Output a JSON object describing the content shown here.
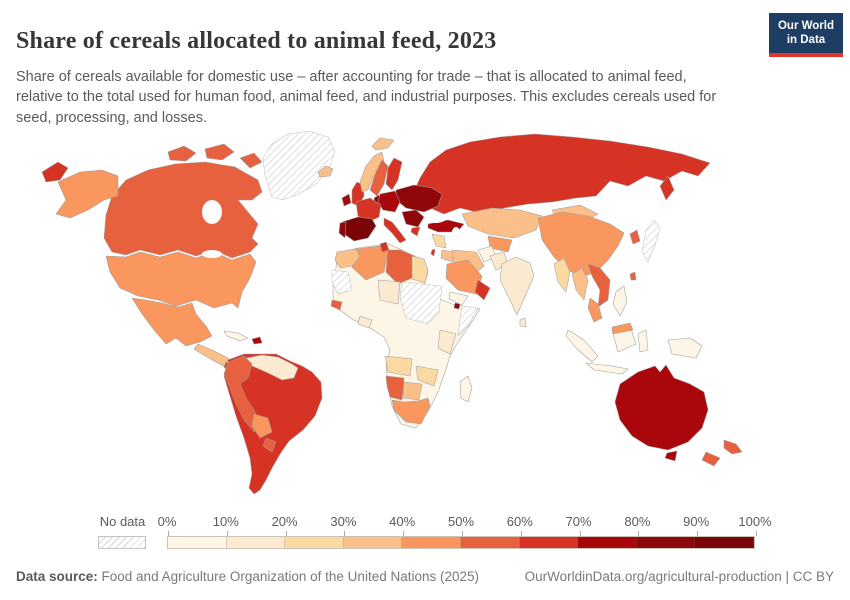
{
  "header": {
    "title": "Share of cereals allocated to animal feed, 2023",
    "subtitle": "Share of cereals available for domestic use – after accounting for trade – that is allocated to animal feed, relative to the total used for human food, animal feed, and industrial purposes. This excludes cereals used for seed, processing, and losses."
  },
  "logo": {
    "line1": "Our World",
    "line2": "in Data",
    "bg_color": "#1d3d63",
    "accent_color": "#e0362c"
  },
  "legend": {
    "no_data_label": "No data",
    "ticks": [
      "0%",
      "10%",
      "20%",
      "30%",
      "40%",
      "50%",
      "60%",
      "70%",
      "80%",
      "90%",
      "100%"
    ],
    "bin_colors": [
      "#fdf6e7",
      "#fcead0",
      "#fbd9a3",
      "#fbc089",
      "#f9975f",
      "#e7613f",
      "#d63324",
      "#a9070b",
      "#8e080b",
      "#7a0406"
    ]
  },
  "footer": {
    "source_label": "Data source:",
    "source_text": " Food and Agriculture Organization of the United Nations (2025)",
    "link_text": "OurWorldinData.org/agricultural-production | CC BY"
  },
  "chart_data": {
    "type": "heatmap",
    "subtype": "world-choropleth",
    "title": "Share of cereals allocated to animal feed, 2023",
    "unit": "% of domestic cereal supply allocated to animal feed",
    "legend_bins": [
      "0-10%",
      "10-20%",
      "20-30%",
      "30-40%",
      "40-50%",
      "50-60%",
      "60-70%",
      "70-80%",
      "80-90%",
      "90-100%"
    ],
    "no_data_style": "hatched",
    "regions": {
      "greenland": {
        "name": "Greenland",
        "value": "No data",
        "color": null
      },
      "canada": {
        "name": "Canada",
        "value": "50-60%",
        "color": "#e7613f"
      },
      "usa": {
        "name": "United States",
        "value": "40-50%",
        "color": "#f9975f"
      },
      "mexico": {
        "name": "Mexico",
        "value": "40-50%",
        "color": "#f9975f"
      },
      "central_america": {
        "name": "Central America",
        "value": "30-40%",
        "color": "#fbc089"
      },
      "costa_rica": {
        "name": "Costa Rica",
        "value": "60-70%",
        "color": "#d63324"
      },
      "cuba": {
        "name": "Cuba",
        "value": "0-10%",
        "color": "#fdf6e7"
      },
      "hispaniola": {
        "name": "Haiti & Dominican Republic",
        "value": "70-80%",
        "color": "#a9070b"
      },
      "venezuela_guyanas": {
        "name": "Venezuela & Guianas",
        "value": "10-20%",
        "color": "#fcead0"
      },
      "andes": {
        "name": "Colombia, Ecuador & Peru",
        "value": "50-60%",
        "color": "#e7613f"
      },
      "bolivia": {
        "name": "Bolivia",
        "value": "40-50%",
        "color": "#f9975f"
      },
      "paraguay": {
        "name": "Paraguay",
        "value": "50-60%",
        "color": "#e7613f"
      },
      "southern_cone": {
        "name": "Brazil, Argentina & Chile",
        "value": "60-70%",
        "color": "#d63324"
      },
      "iceland": {
        "name": "Iceland",
        "value": "30-40%",
        "color": "#fbc089"
      },
      "svalbard": {
        "name": "Svalbard",
        "value": "30-40%",
        "color": "#fbc089"
      },
      "uk": {
        "name": "United Kingdom",
        "value": "60-70%",
        "color": "#d63324"
      },
      "ireland": {
        "name": "Ireland",
        "value": "70-80%",
        "color": "#a9070b"
      },
      "france": {
        "name": "France",
        "value": "60-70%",
        "color": "#d63324"
      },
      "spain": {
        "name": "Spain",
        "value": "90-100%",
        "color": "#7a0406"
      },
      "portugal": {
        "name": "Portugal",
        "value": "80-90%",
        "color": "#8e080b"
      },
      "central_europe": {
        "name": "Germany & Central Europe",
        "value": "70-80%",
        "color": "#a9070b"
      },
      "denmark": {
        "name": "Denmark",
        "value": "80-90%",
        "color": "#8e080b"
      },
      "norway": {
        "name": "Norway",
        "value": "30-40%",
        "color": "#fbc089"
      },
      "sweden": {
        "name": "Sweden",
        "value": "50-60%",
        "color": "#e7613f"
      },
      "finland": {
        "name": "Finland",
        "value": "60-70%",
        "color": "#d63324"
      },
      "eastern_europe": {
        "name": "Poland, Belarus & Ukraine",
        "value": "80-90%",
        "color": "#8e080b"
      },
      "italy": {
        "name": "Italy",
        "value": "60-70%",
        "color": "#d63324"
      },
      "balkans": {
        "name": "Balkans",
        "value": "80-90%",
        "color": "#8e080b"
      },
      "greece": {
        "name": "Greece",
        "value": "60-70%",
        "color": "#d63324"
      },
      "turkey": {
        "name": "Turkey",
        "value": "70-80%",
        "color": "#a9070b"
      },
      "levant": {
        "name": "Syria & Levant",
        "value": "20-30%",
        "color": "#fbd9a3"
      },
      "israel": {
        "name": "Israel",
        "value": "60-70%",
        "color": "#d63324"
      },
      "russia": {
        "name": "Russia",
        "value": "60-70%",
        "color": "#d63324"
      },
      "caucasus": {
        "name": "Caucasus",
        "value": "50-60%",
        "color": "#e7613f"
      },
      "kazakhstan": {
        "name": "Kazakhstan",
        "value": "30-40%",
        "color": "#fbc089"
      },
      "central_asia": {
        "name": "Central Asia",
        "value": "40-50%",
        "color": "#f9975f"
      },
      "iran": {
        "name": "Iran",
        "value": "30-40%",
        "color": "#fbc089"
      },
      "iraq": {
        "name": "Iraq",
        "value": "30-40%",
        "color": "#fbc089"
      },
      "saudi_arabia": {
        "name": "Saudi Arabia",
        "value": "40-50%",
        "color": "#f9975f"
      },
      "oman": {
        "name": "Oman",
        "value": "60-70%",
        "color": "#d63324"
      },
      "yemen": {
        "name": "Yemen",
        "value": "0-10%",
        "color": "#fdf6e7"
      },
      "afghanistan": {
        "name": "Afghanistan",
        "value": "0-10%",
        "color": "#fdf6e7"
      },
      "pakistan": {
        "name": "Pakistan",
        "value": "10-20%",
        "color": "#fcead0"
      },
      "india": {
        "name": "India",
        "value": "10-20%",
        "color": "#fcead0"
      },
      "sri_lanka": {
        "name": "Sri Lanka",
        "value": "10-20%",
        "color": "#fcead0"
      },
      "china": {
        "name": "China",
        "value": "40-50%",
        "color": "#f9975f"
      },
      "taiwan": {
        "name": "Taiwan",
        "value": "50-60%",
        "color": "#e7613f"
      },
      "mongolia": {
        "name": "Mongolia",
        "value": "30-40%",
        "color": "#fbc089"
      },
      "japan": {
        "name": "Japan",
        "value": "No data",
        "color": null
      },
      "south_korea": {
        "name": "South Korea",
        "value": "50-60%",
        "color": "#e7613f"
      },
      "myanmar": {
        "name": "Myanmar",
        "value": "20-30%",
        "color": "#fbd9a3"
      },
      "thailand": {
        "name": "Thailand",
        "value": "30-40%",
        "color": "#fbc089"
      },
      "vietnam": {
        "name": "Vietnam",
        "value": "50-60%",
        "color": "#e7613f"
      },
      "malaysia": {
        "name": "Malaysia",
        "value": "40-50%",
        "color": "#f9975f"
      },
      "philippines": {
        "name": "Philippines",
        "value": "0-10%",
        "color": "#fdf6e7"
      },
      "indonesia": {
        "name": "Indonesia",
        "value": "0-10%",
        "color": "#fdf6e7"
      },
      "new_guinea": {
        "name": "Papua New Guinea",
        "value": "0-10%",
        "color": "#fdf6e7"
      },
      "australia": {
        "name": "Australia",
        "value": "70-80%",
        "color": "#a9070b"
      },
      "new_zealand": {
        "name": "New Zealand",
        "value": "50-60%",
        "color": "#e7613f"
      },
      "africa_interior": {
        "name": "Sub-Saharan Africa (most countries)",
        "value": "0-10%",
        "color": "#fdf6e7"
      },
      "morocco": {
        "name": "Morocco",
        "value": "30-40%",
        "color": "#fbc089"
      },
      "algeria": {
        "name": "Algeria",
        "value": "40-50%",
        "color": "#f9975f"
      },
      "tunisia": {
        "name": "Tunisia",
        "value": "60-70%",
        "color": "#d63324"
      },
      "libya": {
        "name": "Libya",
        "value": "50-60%",
        "color": "#e7613f"
      },
      "egypt": {
        "name": "Egypt",
        "value": "20-30%",
        "color": "#fbd9a3"
      },
      "mauritania": {
        "name": "Mauritania & Western Sahara",
        "value": "No data",
        "color": null
      },
      "niger": {
        "name": "Niger & Chad",
        "value": "10-20%",
        "color": "#fcead0"
      },
      "sudan": {
        "name": "Sudan & South Sudan",
        "value": "No data",
        "color": null
      },
      "somalia": {
        "name": "Somalia",
        "value": "No data",
        "color": null
      },
      "djibouti": {
        "name": "Djibouti",
        "value": "80-90%",
        "color": "#8e080b"
      },
      "senegal": {
        "name": "Senegal",
        "value": "50-60%",
        "color": "#e7613f"
      },
      "ghana": {
        "name": "Ghana & Côte d'Ivoire",
        "value": "10-20%",
        "color": "#fcead0"
      },
      "kenya_tanzania": {
        "name": "Kenya & Tanzania",
        "value": "10-20%",
        "color": "#fcead0"
      },
      "angola": {
        "name": "Angola",
        "value": "20-30%",
        "color": "#fbd9a3"
      },
      "zimbabwe": {
        "name": "Zambia & Zimbabwe",
        "value": "20-30%",
        "color": "#fbd9a3"
      },
      "namibia": {
        "name": "Namibia",
        "value": "50-60%",
        "color": "#e7613f"
      },
      "botswana": {
        "name": "Botswana",
        "value": "30-40%",
        "color": "#fbc089"
      },
      "south_africa": {
        "name": "South Africa",
        "value": "40-50%",
        "color": "#f9975f"
      },
      "madagascar": {
        "name": "Madagascar",
        "value": "0-10%",
        "color": "#fdf6e7"
      }
    }
  }
}
